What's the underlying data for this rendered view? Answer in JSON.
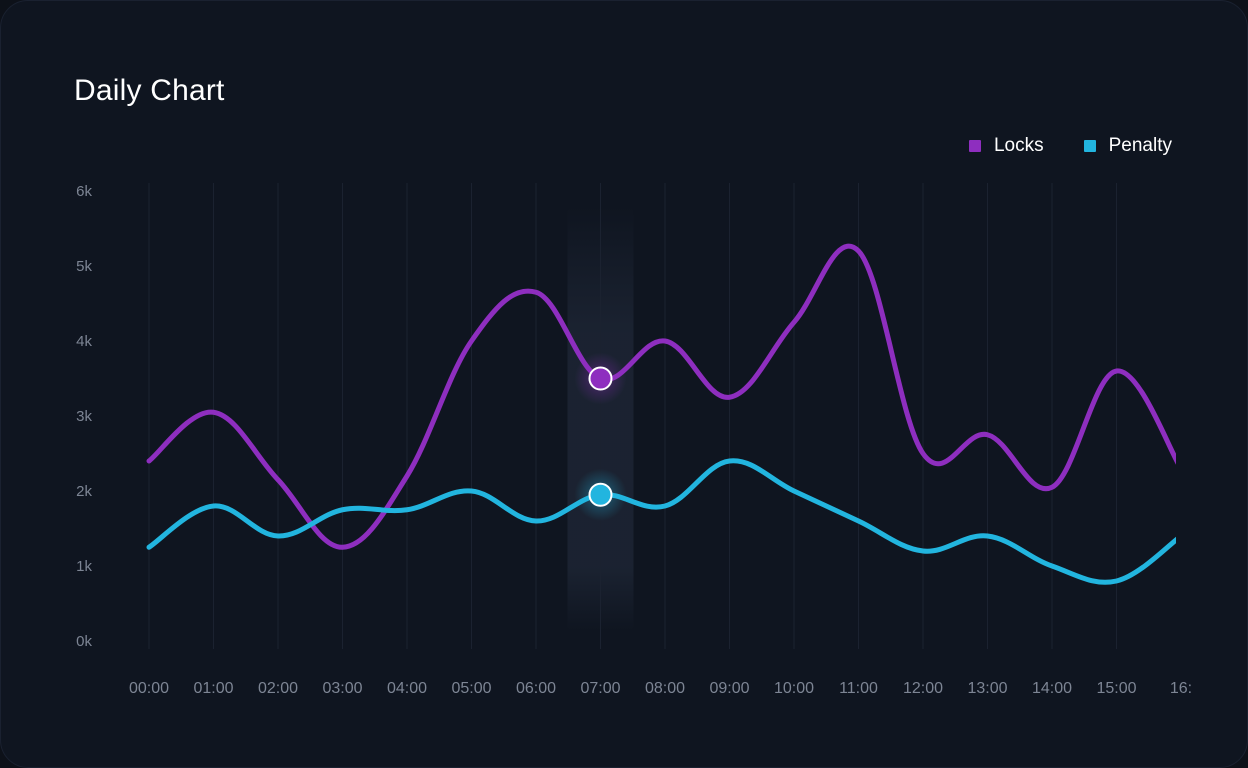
{
  "title": "Daily Chart",
  "colors": {
    "background": "#0f1520",
    "locks": "#8e2ebf",
    "penalty": "#22b5df",
    "grid": "#1b2230",
    "tick": "#7d8594"
  },
  "legend": [
    {
      "label": "Locks",
      "color": "#8e2ebf"
    },
    {
      "label": "Penalty",
      "color": "#22b5df"
    }
  ],
  "chart_data": {
    "type": "line",
    "x": [
      "00:00",
      "01:00",
      "02:00",
      "03:00",
      "04:00",
      "05:00",
      "06:00",
      "07:00",
      "08:00",
      "09:00",
      "10:00",
      "11:00",
      "12:00",
      "13:00",
      "14:00",
      "15:00",
      "16:"
    ],
    "y_ticks": [
      "0k",
      "1k",
      "2k",
      "3k",
      "4k",
      "5k",
      "6k"
    ],
    "ylim": [
      0,
      6000
    ],
    "grid": "vertical",
    "legend_position": "top-right",
    "highlighted_x": "07:00",
    "series": [
      {
        "name": "Locks",
        "values": [
          2400,
          3050,
          2150,
          1250,
          2200,
          4000,
          4650,
          3500,
          4000,
          3250,
          4250,
          5200,
          2500,
          2750,
          2050,
          3600,
          2300
        ]
      },
      {
        "name": "Penalty",
        "values": [
          1250,
          1800,
          1400,
          1750,
          1750,
          2000,
          1600,
          1950,
          1800,
          2400,
          2000,
          1600,
          1200,
          1400,
          1000,
          800,
          1400
        ]
      }
    ]
  }
}
